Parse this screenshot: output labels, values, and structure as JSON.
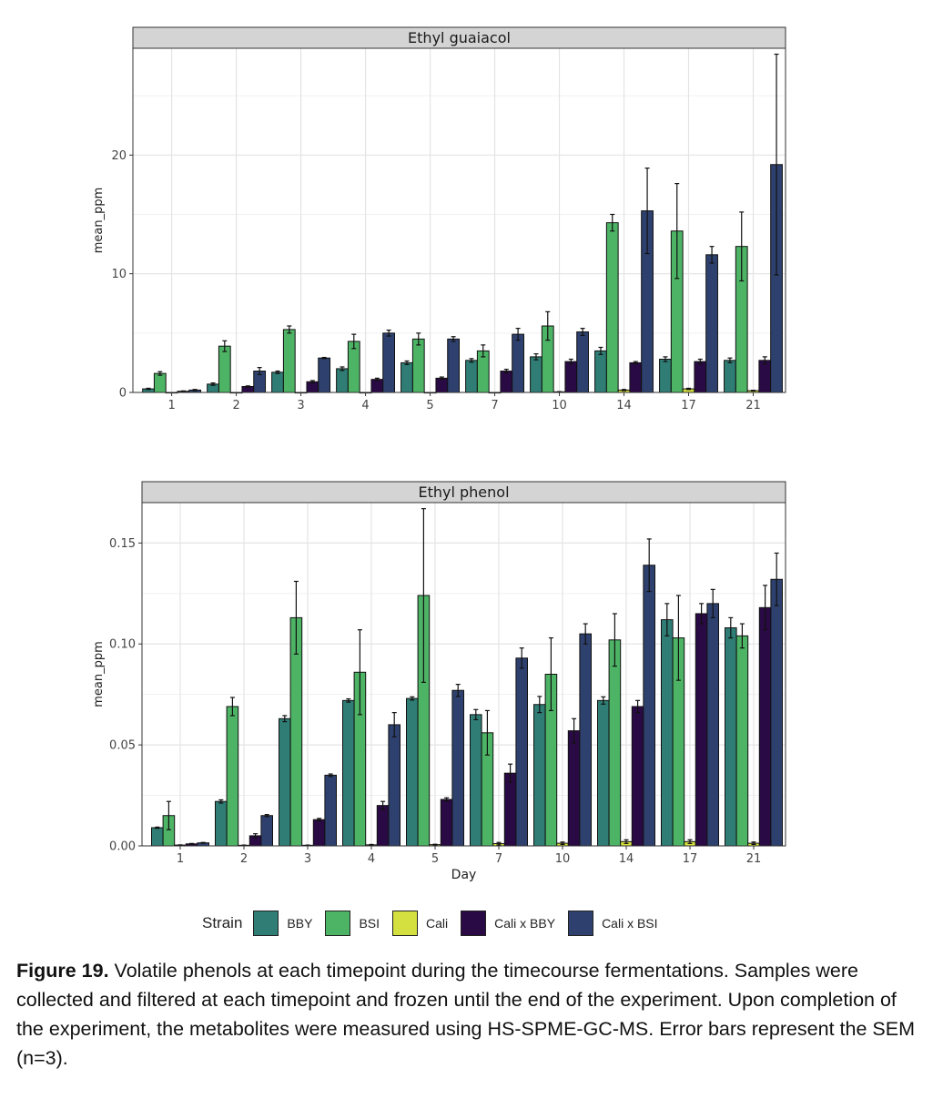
{
  "chart_data": [
    {
      "type": "bar",
      "title": "Ethyl guaiacol",
      "ylabel": "mean_ppm",
      "xlabel": "",
      "ylim": [
        0,
        29
      ],
      "yticks": [
        0,
        10,
        20
      ],
      "categories": [
        "1",
        "2",
        "3",
        "4",
        "5",
        "7",
        "10",
        "14",
        "17",
        "21"
      ],
      "series": [
        {
          "name": "BBY",
          "values": [
            0.3,
            0.7,
            1.7,
            2.0,
            2.5,
            2.7,
            3.0,
            3.5,
            2.8,
            2.7
          ],
          "errors": [
            0.05,
            0.1,
            0.1,
            0.15,
            0.15,
            0.15,
            0.25,
            0.3,
            0.2,
            0.2
          ]
        },
        {
          "name": "BSI",
          "values": [
            1.6,
            3.9,
            5.3,
            4.3,
            4.5,
            3.5,
            5.6,
            14.3,
            13.6,
            12.3
          ],
          "errors": [
            0.15,
            0.45,
            0.3,
            0.6,
            0.5,
            0.5,
            1.2,
            0.7,
            4.0,
            2.9
          ]
        },
        {
          "name": "Cali",
          "values": [
            0,
            0,
            0,
            0,
            0,
            0,
            0.05,
            0.2,
            0.3,
            0.15
          ],
          "errors": [
            0,
            0,
            0,
            0,
            0,
            0,
            0.02,
            0.05,
            0.05,
            0.03
          ]
        },
        {
          "name": "Cali x BBY",
          "values": [
            0.1,
            0.5,
            0.9,
            1.1,
            1.2,
            1.8,
            2.6,
            2.5,
            2.6,
            2.7
          ],
          "errors": [
            0.03,
            0.05,
            0.1,
            0.1,
            0.1,
            0.15,
            0.2,
            0.1,
            0.2,
            0.3
          ]
        },
        {
          "name": "Cali x BSI",
          "values": [
            0.2,
            1.8,
            2.9,
            5.0,
            4.5,
            4.9,
            5.1,
            15.3,
            11.6,
            19.2
          ],
          "errors": [
            0.05,
            0.3,
            0.05,
            0.25,
            0.2,
            0.5,
            0.3,
            3.6,
            0.7,
            9.3
          ]
        }
      ]
    },
    {
      "type": "bar",
      "title": "Ethyl phenol",
      "ylabel": "mean_ppm",
      "xlabel": "Day",
      "ylim": [
        0,
        0.17
      ],
      "yticks": [
        "0.00",
        "0.05",
        "0.10",
        "0.15"
      ],
      "categories": [
        "1",
        "2",
        "3",
        "4",
        "5",
        "7",
        "10",
        "14",
        "17",
        "21"
      ],
      "series": [
        {
          "name": "BBY",
          "values": [
            0.009,
            0.022,
            0.063,
            0.072,
            0.073,
            0.065,
            0.07,
            0.072,
            0.112,
            0.108
          ],
          "errors": [
            0.0003,
            0.0008,
            0.0015,
            0.0008,
            0.0008,
            0.0025,
            0.004,
            0.0018,
            0.008,
            0.005
          ]
        },
        {
          "name": "BSI",
          "values": [
            0.015,
            0.069,
            0.113,
            0.086,
            0.124,
            0.056,
            0.085,
            0.102,
            0.103,
            0.104
          ],
          "errors": [
            0.007,
            0.0045,
            0.018,
            0.021,
            0.043,
            0.011,
            0.018,
            0.013,
            0.021,
            0.006
          ]
        },
        {
          "name": "Cali",
          "values": [
            0.0004,
            0.0003,
            0.0003,
            0.0005,
            0.0006,
            0.0011,
            0.0013,
            0.0021,
            0.0021,
            0.0013
          ],
          "errors": [
            0.0001,
            0.0001,
            0.0001,
            0.0002,
            0.0002,
            0.0006,
            0.0006,
            0.0009,
            0.0009,
            0.0006
          ]
        },
        {
          "name": "Cali x BBY",
          "values": [
            0.001,
            0.005,
            0.013,
            0.02,
            0.023,
            0.036,
            0.057,
            0.069,
            0.115,
            0.118
          ],
          "errors": [
            0.0002,
            0.001,
            0.0006,
            0.002,
            0.0008,
            0.0045,
            0.006,
            0.003,
            0.005,
            0.011
          ]
        },
        {
          "name": "Cali x BSI",
          "values": [
            0.0015,
            0.015,
            0.035,
            0.06,
            0.077,
            0.093,
            0.105,
            0.139,
            0.12,
            0.132
          ],
          "errors": [
            0.0002,
            0.0005,
            0.0006,
            0.006,
            0.003,
            0.005,
            0.005,
            0.013,
            0.007,
            0.013
          ]
        }
      ]
    }
  ],
  "colors": {
    "BBY": "#2f7d74",
    "BSI": "#4db365",
    "Cali": "#d4e03f",
    "Cali x BBY": "#2a0a45",
    "Cali x BSI": "#2e416e"
  },
  "legend": {
    "title": "Strain",
    "items": [
      "BBY",
      "BSI",
      "Cali",
      "Cali x BBY",
      "Cali x BSI"
    ]
  },
  "caption": {
    "label": "Figure 19.",
    "text": " Volatile phenols at each timepoint during the timecourse fermentations. Samples were collected and filtered at each timepoint and frozen until the end of the experiment. Upon completion of the experiment, the metabolites were measured using HS-SPME-GC-MS. Error bars represent the SEM (n=3)."
  }
}
